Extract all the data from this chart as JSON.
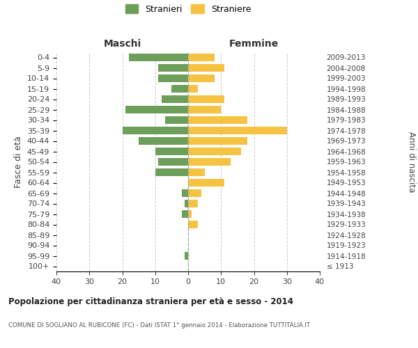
{
  "age_groups": [
    "100+",
    "95-99",
    "90-94",
    "85-89",
    "80-84",
    "75-79",
    "70-74",
    "65-69",
    "60-64",
    "55-59",
    "50-54",
    "45-49",
    "40-44",
    "35-39",
    "30-34",
    "25-29",
    "20-24",
    "15-19",
    "10-14",
    "5-9",
    "0-4"
  ],
  "birth_years": [
    "≤ 1913",
    "1914-1918",
    "1919-1923",
    "1924-1928",
    "1929-1933",
    "1934-1938",
    "1939-1943",
    "1944-1948",
    "1949-1953",
    "1954-1958",
    "1959-1963",
    "1964-1968",
    "1969-1973",
    "1974-1978",
    "1979-1983",
    "1984-1988",
    "1989-1993",
    "1994-1998",
    "1999-2003",
    "2004-2008",
    "2009-2013"
  ],
  "maschi": [
    0,
    1,
    0,
    0,
    0,
    2,
    1,
    2,
    0,
    10,
    9,
    10,
    15,
    20,
    7,
    19,
    8,
    5,
    9,
    9,
    18
  ],
  "femmine": [
    0,
    0,
    0,
    0,
    3,
    1,
    3,
    4,
    11,
    5,
    13,
    16,
    18,
    30,
    18,
    10,
    11,
    3,
    8,
    11,
    8
  ],
  "maschi_color": "#6d9f5b",
  "femmine_color": "#f5c242",
  "title": "Popolazione per cittadinanza straniera per età e sesso - 2014",
  "subtitle": "COMUNE DI SOGLIANO AL RUBICONE (FC) - Dati ISTAT 1° gennaio 2014 - Elaborazione TUTTITALIA.IT",
  "ylabel_left": "Fasce di età",
  "ylabel_right": "Anni di nascita",
  "xlabel_maschi": "Maschi",
  "xlabel_femmine": "Femmine",
  "legend_stranieri": "Stranieri",
  "legend_straniere": "Straniere",
  "xlim": 40,
  "background_color": "#ffffff",
  "grid_color": "#cccccc"
}
